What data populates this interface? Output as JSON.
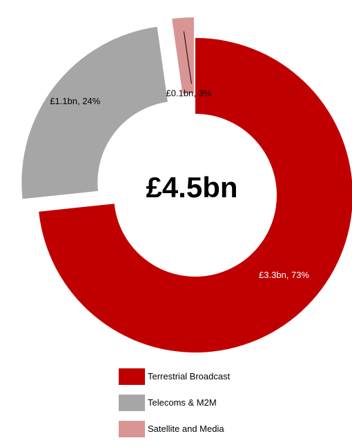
{
  "chart_data": {
    "type": "pie",
    "variant": "donut",
    "center_label": "£4.5bn",
    "slices": [
      {
        "name": "Terrestrial Broadcast",
        "value_bn": 3.3,
        "percent": 73,
        "label": "£3.3bn, 73%",
        "color": "#C00000",
        "label_color": "#ffffff",
        "exploded": false
      },
      {
        "name": "Telecoms & M2M",
        "value_bn": 1.1,
        "percent": 24,
        "label": "£1.1bn, 24%",
        "color": "#A6A6A6",
        "label_color": "#000000",
        "exploded": true
      },
      {
        "name": "Satellite and Media",
        "value_bn": 0.1,
        "percent": 3,
        "label": "£0.1bn, 3%",
        "color": "#D99594",
        "label_color": "#000000",
        "exploded": true
      }
    ],
    "legend_position": "bottom"
  }
}
